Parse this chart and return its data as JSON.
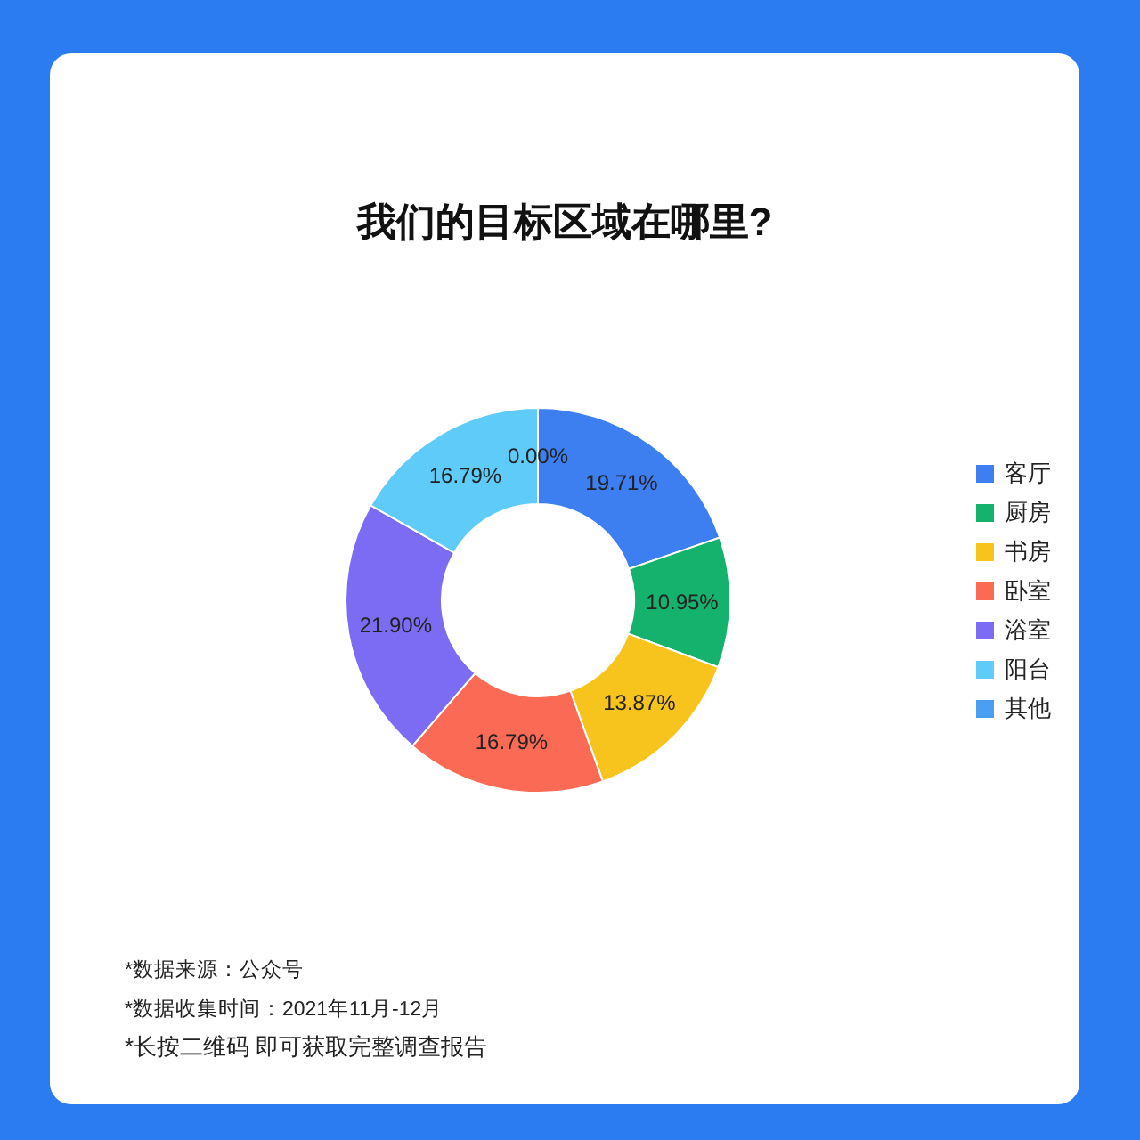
{
  "chart_data": {
    "type": "donut",
    "title": "我们的目标区域在哪里?",
    "categories": [
      "客厅",
      "厨房",
      "书房",
      "卧室",
      "浴室",
      "阳台",
      "其他"
    ],
    "values": [
      19.71,
      10.95,
      13.87,
      16.79,
      21.9,
      16.79,
      0.0
    ],
    "value_labels": [
      "19.71%",
      "10.95%",
      "13.87%",
      "16.79%",
      "21.90%",
      "16.79%",
      "0.00%"
    ],
    "colors": [
      "#3d7ff0",
      "#14b26c",
      "#f7c31d",
      "#fa6a55",
      "#7b6cf3",
      "#5ecbf9",
      "#4a9ff0"
    ],
    "legend": "right",
    "annotations": [
      "*数据来源：公众号",
      "*数据收集时间：2021年11月-12月",
      "*长按二维码 即可获取完整调查报告"
    ]
  }
}
